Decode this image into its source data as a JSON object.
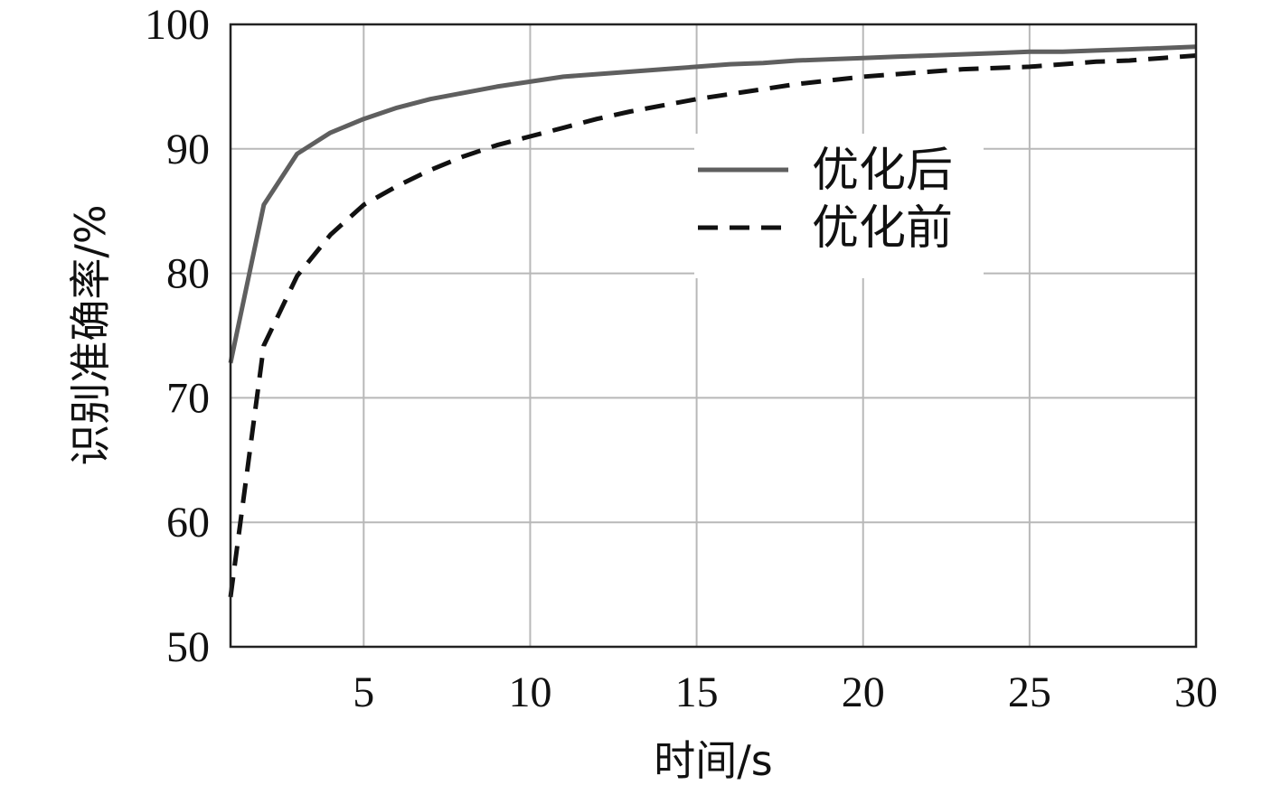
{
  "chart_data": {
    "type": "line",
    "xlabel": "时间/s",
    "ylabel": "识别准确率/%",
    "xlim": [
      1,
      30
    ],
    "ylim": [
      50,
      100
    ],
    "xticks": [
      5,
      10,
      15,
      20,
      25,
      30
    ],
    "yticks": [
      50,
      60,
      70,
      80,
      90,
      100
    ],
    "grid": true,
    "legend_position": "upper-right",
    "series": [
      {
        "name": "优化后",
        "style": "solid",
        "color": "#5f5f5f",
        "x": [
          1,
          2,
          3,
          4,
          5,
          6,
          7,
          8,
          9,
          10,
          11,
          12,
          13,
          14,
          15,
          16,
          17,
          18,
          19,
          20,
          21,
          22,
          23,
          24,
          25,
          26,
          27,
          28,
          29,
          30
        ],
        "y": [
          72.8,
          85.5,
          89.6,
          91.3,
          92.4,
          93.3,
          94.0,
          94.5,
          95.0,
          95.4,
          95.8,
          96.0,
          96.2,
          96.4,
          96.6,
          96.8,
          96.9,
          97.1,
          97.2,
          97.3,
          97.4,
          97.5,
          97.6,
          97.7,
          97.8,
          97.8,
          97.9,
          98.0,
          98.1,
          98.2
        ]
      },
      {
        "name": "优化前",
        "style": "dashed",
        "color": "#111111",
        "x": [
          1,
          2,
          3,
          4,
          5,
          6,
          7,
          8,
          9,
          10,
          11,
          12,
          13,
          14,
          15,
          16,
          17,
          18,
          19,
          20,
          21,
          22,
          23,
          24,
          25,
          26,
          27,
          28,
          29,
          30
        ],
        "y": [
          54.0,
          74.2,
          79.8,
          83.1,
          85.5,
          87.0,
          88.3,
          89.4,
          90.3,
          91.0,
          91.7,
          92.4,
          93.0,
          93.5,
          94.0,
          94.4,
          94.8,
          95.2,
          95.5,
          95.8,
          96.0,
          96.2,
          96.4,
          96.5,
          96.6,
          96.8,
          97.0,
          97.1,
          97.3,
          97.5
        ]
      }
    ]
  }
}
